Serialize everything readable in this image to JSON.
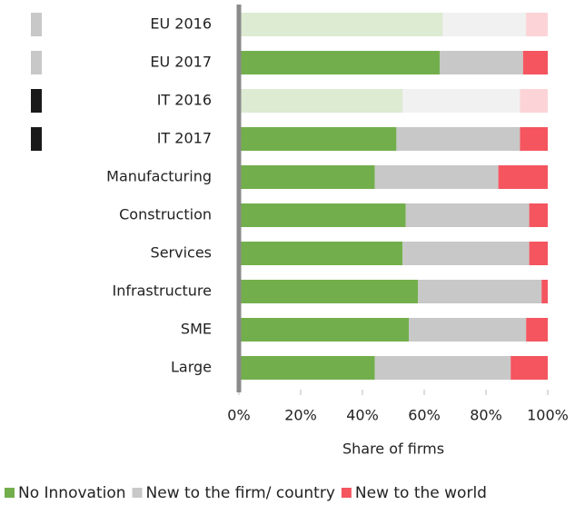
{
  "chart_data": {
    "type": "stacked_barh",
    "xlabel": "Share of firms",
    "categories": [
      "EU 2016",
      "EU 2017",
      "IT 2016",
      "IT 2017",
      "Manufacturing",
      "Construction",
      "Services",
      "Infrastructure",
      "SME",
      "Large"
    ],
    "series": [
      {
        "name": "No Innovation",
        "color": "#72af4c",
        "values": [
          66,
          65,
          53,
          51,
          44,
          54,
          53,
          58,
          55,
          44
        ]
      },
      {
        "name": "New to the firm/ country",
        "color": "#c8c8c8",
        "values": [
          27,
          27,
          38,
          40,
          40,
          40,
          41,
          40,
          38,
          44
        ]
      },
      {
        "name": "New to the world",
        "color": "#f4555f",
        "values": [
          7,
          8,
          9,
          9,
          16,
          6,
          6,
          2,
          7,
          12
        ]
      }
    ],
    "bar_opacity": [
      0.25,
      1,
      0.25,
      1,
      1,
      1,
      1,
      1,
      1,
      1
    ],
    "marker_colors": [
      "#c8c8c8",
      "#c8c8c8",
      "#1a1a1a",
      "#1a1a1a",
      null,
      null,
      null,
      null,
      null,
      null
    ],
    "xlim": [
      0,
      100
    ],
    "xticks": [
      {
        "value": 0,
        "label": "0%"
      },
      {
        "value": 20,
        "label": "20%"
      },
      {
        "value": 40,
        "label": "40%"
      },
      {
        "value": 60,
        "label": "60%"
      },
      {
        "value": 80,
        "label": "80%"
      },
      {
        "value": 100,
        "label": "100%"
      }
    ],
    "legend": "bottom-left"
  }
}
